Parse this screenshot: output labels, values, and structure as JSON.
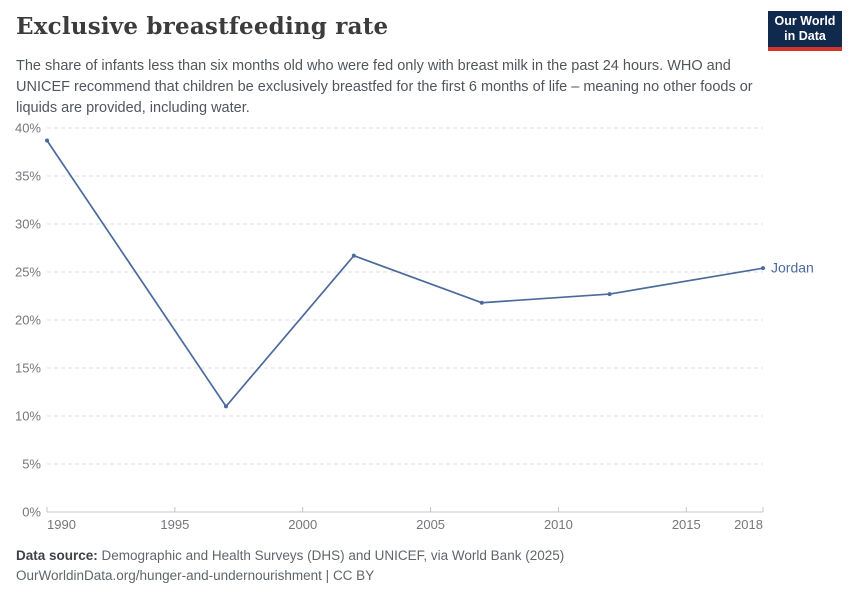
{
  "header": {
    "title": "Exclusive breastfeeding rate",
    "subtitle": "The share of infants less than six months old who were fed only with breast milk in the past 24 hours. WHO and UNICEF recommend that children be exclusively breastfed for the first 6 months of life – meaning no other foods or liquids are provided, including water.",
    "logo": {
      "line1": "Our World",
      "line2": "in Data",
      "bg_color": "#102a4e",
      "accent_color": "#d2342d"
    }
  },
  "chart_data": {
    "type": "line",
    "title": "Exclusive breastfeeding rate",
    "xlabel": "",
    "ylabel": "",
    "xlim": [
      1990,
      2018
    ],
    "ylim": [
      0,
      40
    ],
    "grid": true,
    "legend_position": "end-of-line",
    "x_ticks": [
      1990,
      1995,
      2000,
      2005,
      2010,
      2015,
      2018
    ],
    "x_tick_labels": [
      "1990",
      "1995",
      "2000",
      "2005",
      "2010",
      "2015",
      "2018"
    ],
    "y_ticks": [
      0,
      5,
      10,
      15,
      20,
      25,
      30,
      35,
      40
    ],
    "y_tick_labels": [
      "0%",
      "5%",
      "10%",
      "15%",
      "20%",
      "25%",
      "30%",
      "35%",
      "40%"
    ],
    "grid_color": "#dcdcdc",
    "axis_color": "#c4c4c4",
    "tick_label_color": "#76767d",
    "series": [
      {
        "name": "Jordan",
        "color": "#4c6a9c",
        "x": [
          1990,
          1997,
          2002,
          2007,
          2012,
          2018
        ],
        "values": [
          38.7,
          11.0,
          26.7,
          21.8,
          22.7,
          25.4
        ]
      }
    ]
  },
  "footer": {
    "source_label": "Data source:",
    "source_text": " Demographic and Health Surveys (DHS) and UNICEF, via World Bank (2025)",
    "note_url": "OurWorldinData.org/hunger-and-undernourishment",
    "note_separator": " | ",
    "note_license": "CC BY"
  }
}
